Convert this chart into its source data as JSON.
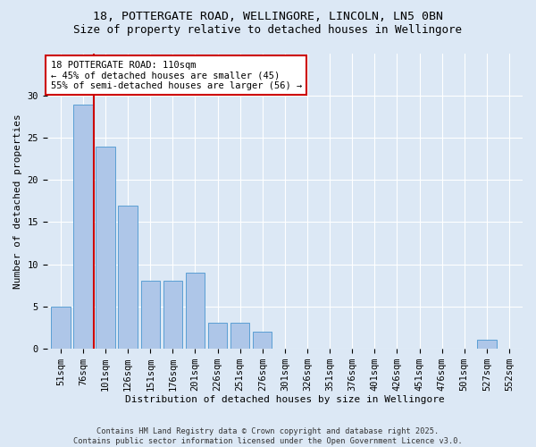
{
  "title_line1": "18, POTTERGATE ROAD, WELLINGORE, LINCOLN, LN5 0BN",
  "title_line2": "Size of property relative to detached houses in Wellingore",
  "xlabel": "Distribution of detached houses by size in Wellingore",
  "ylabel": "Number of detached properties",
  "categories": [
    "51sqm",
    "76sqm",
    "101sqm",
    "126sqm",
    "151sqm",
    "176sqm",
    "201sqm",
    "226sqm",
    "251sqm",
    "276sqm",
    "301sqm",
    "326sqm",
    "351sqm",
    "376sqm",
    "401sqm",
    "426sqm",
    "451sqm",
    "476sqm",
    "501sqm",
    "527sqm",
    "552sqm"
  ],
  "values": [
    5,
    29,
    24,
    17,
    8,
    8,
    9,
    3,
    3,
    2,
    0,
    0,
    0,
    0,
    0,
    0,
    0,
    0,
    0,
    1,
    0
  ],
  "bar_color": "#aec6e8",
  "bar_edge_color": "#5a9fd4",
  "vline_color": "#cc0000",
  "vline_pos": 1.5,
  "ylim": [
    0,
    35
  ],
  "yticks": [
    0,
    5,
    10,
    15,
    20,
    25,
    30
  ],
  "annotation_text": "18 POTTERGATE ROAD: 110sqm\n← 45% of detached houses are smaller (45)\n55% of semi-detached houses are larger (56) →",
  "annotation_box_color": "#ffffff",
  "annotation_box_edge": "#cc0000",
  "background_color": "#dce8f5",
  "grid_color": "#ffffff",
  "footer_text": "Contains HM Land Registry data © Crown copyright and database right 2025.\nContains public sector information licensed under the Open Government Licence v3.0.",
  "title_fontsize": 9.5,
  "subtitle_fontsize": 9,
  "axis_label_fontsize": 8,
  "tick_fontsize": 7.5,
  "annot_fontsize": 7.5
}
